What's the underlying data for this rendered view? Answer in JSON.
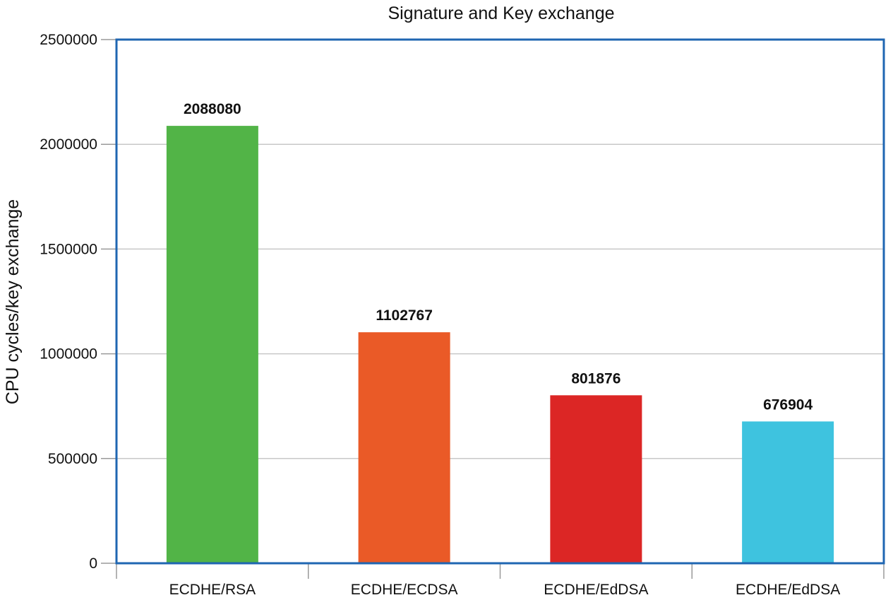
{
  "chart_data": {
    "type": "bar",
    "title": "Signature and Key exchange",
    "xlabel": "",
    "ylabel": "CPU cycles/key exchange",
    "categories": [
      "ECDHE/RSA",
      "ECDHE/ECDSA",
      "ECDHE/EdDSA",
      "ECDHE/EdDSA"
    ],
    "values": [
      2088080,
      1102767,
      801876,
      676904
    ],
    "data_labels": [
      "2088080",
      "1102767",
      "801876",
      "676904"
    ],
    "colors": [
      "#52b447",
      "#ea5a27",
      "#dc2625",
      "#3ec3df"
    ],
    "ylim": [
      0,
      2500000
    ],
    "yticks": [
      0,
      500000,
      1000000,
      1500000,
      2000000,
      2500000
    ],
    "ytick_labels": [
      "0",
      "500000",
      "1000000",
      "1500000",
      "2000000",
      "2500000"
    ],
    "grid": true,
    "legend": "none"
  }
}
